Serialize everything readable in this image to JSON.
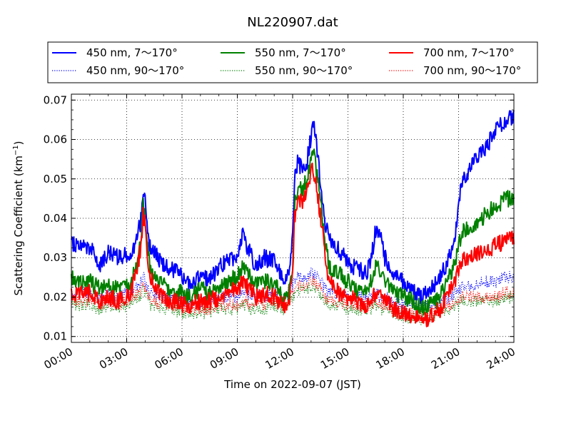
{
  "chart_data": {
    "type": "line",
    "title": "NL220907.dat",
    "xlabel": "Time on 2022-09-07 (JST)",
    "ylabel_main": "Scattering Coefficient (km",
    "ylabel_sup": "−1",
    "ylabel_end": ")",
    "xlim": [
      "00:00",
      "24:00"
    ],
    "ylim": [
      0.0085,
      0.0715
    ],
    "x_ticks": [
      "00:00",
      "03:00",
      "06:00",
      "09:00",
      "12:00",
      "15:00",
      "18:00",
      "21:00",
      "24:00"
    ],
    "y_ticks": [
      "0.01",
      "0.02",
      "0.03",
      "0.04",
      "0.05",
      "0.06",
      "0.07"
    ],
    "grid": true,
    "legend_placement": "top-outside",
    "x_hours": [
      0,
      0.5,
      1,
      1.5,
      2,
      2.5,
      3,
      3.3,
      3.6,
      3.8,
      3.9,
      4.0,
      4.1,
      4.25,
      4.5,
      5,
      5.5,
      6,
      6.5,
      7,
      7.5,
      8,
      8.5,
      9,
      9.3,
      9.5,
      9.7,
      10,
      10.5,
      11,
      11.5,
      11.8,
      12,
      12.1,
      12.3,
      12.5,
      12.8,
      13,
      13.1,
      13.3,
      13.5,
      13.8,
      14,
      14.5,
      15,
      15.5,
      16,
      16.3,
      16.5,
      16.8,
      17,
      17.5,
      18,
      18.5,
      19,
      19.5,
      20,
      20.5,
      20.8,
      21,
      21.2,
      21.5,
      22,
      22.5,
      23,
      23.5,
      24
    ],
    "series": [
      {
        "name": "450 nm, 7～170°",
        "color": "#0000ff",
        "style": "solid",
        "values": [
          0.034,
          0.033,
          0.033,
          0.028,
          0.031,
          0.03,
          0.031,
          0.032,
          0.036,
          0.04,
          0.048,
          0.044,
          0.038,
          0.033,
          0.031,
          0.028,
          0.027,
          0.025,
          0.023,
          0.026,
          0.024,
          0.028,
          0.029,
          0.031,
          0.036,
          0.033,
          0.031,
          0.028,
          0.03,
          0.029,
          0.024,
          0.026,
          0.035,
          0.05,
          0.055,
          0.052,
          0.055,
          0.061,
          0.065,
          0.058,
          0.05,
          0.038,
          0.034,
          0.032,
          0.029,
          0.027,
          0.026,
          0.031,
          0.037,
          0.035,
          0.03,
          0.026,
          0.024,
          0.022,
          0.02,
          0.022,
          0.025,
          0.03,
          0.035,
          0.045,
          0.05,
          0.052,
          0.055,
          0.058,
          0.062,
          0.065,
          0.066
        ]
      },
      {
        "name": "550 nm, 7～170°",
        "color": "#008000",
        "style": "solid",
        "values": [
          0.025,
          0.024,
          0.024,
          0.022,
          0.023,
          0.022,
          0.023,
          0.025,
          0.03,
          0.036,
          0.043,
          0.04,
          0.034,
          0.028,
          0.026,
          0.023,
          0.022,
          0.021,
          0.02,
          0.022,
          0.021,
          0.023,
          0.024,
          0.025,
          0.028,
          0.027,
          0.025,
          0.023,
          0.024,
          0.023,
          0.02,
          0.021,
          0.028,
          0.043,
          0.048,
          0.047,
          0.05,
          0.055,
          0.057,
          0.052,
          0.045,
          0.032,
          0.028,
          0.026,
          0.024,
          0.022,
          0.022,
          0.025,
          0.028,
          0.027,
          0.024,
          0.021,
          0.02,
          0.019,
          0.017,
          0.018,
          0.02,
          0.025,
          0.028,
          0.033,
          0.036,
          0.038,
          0.039,
          0.041,
          0.043,
          0.045,
          0.045
        ]
      },
      {
        "name": "700 nm, 7～170°",
        "color": "#ff0000",
        "style": "solid",
        "values": [
          0.021,
          0.021,
          0.021,
          0.019,
          0.02,
          0.019,
          0.02,
          0.022,
          0.028,
          0.034,
          0.041,
          0.038,
          0.032,
          0.026,
          0.023,
          0.02,
          0.019,
          0.018,
          0.018,
          0.019,
          0.019,
          0.02,
          0.021,
          0.022,
          0.024,
          0.023,
          0.022,
          0.02,
          0.021,
          0.02,
          0.018,
          0.019,
          0.026,
          0.04,
          0.045,
          0.044,
          0.047,
          0.052,
          0.053,
          0.048,
          0.041,
          0.029,
          0.024,
          0.021,
          0.02,
          0.019,
          0.018,
          0.02,
          0.021,
          0.021,
          0.019,
          0.017,
          0.016,
          0.015,
          0.014,
          0.015,
          0.017,
          0.021,
          0.024,
          0.027,
          0.029,
          0.03,
          0.031,
          0.032,
          0.033,
          0.034,
          0.035
        ]
      },
      {
        "name": "450 nm, 90～170°",
        "color": "#0000ff",
        "style": "dotted",
        "values": [
          0.021,
          0.021,
          0.021,
          0.02,
          0.021,
          0.02,
          0.021,
          0.022,
          0.023,
          0.024,
          0.025,
          0.024,
          0.023,
          0.021,
          0.021,
          0.02,
          0.02,
          0.019,
          0.019,
          0.019,
          0.019,
          0.02,
          0.02,
          0.02,
          0.021,
          0.021,
          0.02,
          0.02,
          0.02,
          0.021,
          0.02,
          0.021,
          0.023,
          0.024,
          0.025,
          0.025,
          0.025,
          0.026,
          0.026,
          0.025,
          0.024,
          0.022,
          0.021,
          0.021,
          0.02,
          0.02,
          0.02,
          0.02,
          0.021,
          0.02,
          0.02,
          0.019,
          0.018,
          0.018,
          0.017,
          0.018,
          0.019,
          0.02,
          0.021,
          0.022,
          0.023,
          0.023,
          0.023,
          0.024,
          0.024,
          0.025,
          0.025
        ]
      },
      {
        "name": "550 nm, 90～170°",
        "color": "#008000",
        "style": "dotted",
        "values": [
          0.018,
          0.018,
          0.018,
          0.017,
          0.018,
          0.017,
          0.018,
          0.019,
          0.02,
          0.021,
          0.022,
          0.021,
          0.02,
          0.018,
          0.018,
          0.017,
          0.017,
          0.016,
          0.016,
          0.016,
          0.016,
          0.017,
          0.017,
          0.017,
          0.018,
          0.018,
          0.017,
          0.017,
          0.017,
          0.018,
          0.017,
          0.018,
          0.02,
          0.021,
          0.022,
          0.022,
          0.022,
          0.023,
          0.023,
          0.022,
          0.021,
          0.019,
          0.018,
          0.018,
          0.017,
          0.017,
          0.017,
          0.017,
          0.018,
          0.017,
          0.017,
          0.016,
          0.015,
          0.015,
          0.014,
          0.015,
          0.016,
          0.017,
          0.018,
          0.018,
          0.019,
          0.019,
          0.019,
          0.019,
          0.019,
          0.02,
          0.02
        ]
      },
      {
        "name": "700 nm, 90～170°",
        "color": "#ff0000",
        "style": "dotted",
        "values": [
          0.019,
          0.019,
          0.019,
          0.018,
          0.019,
          0.018,
          0.019,
          0.02,
          0.021,
          0.022,
          0.023,
          0.022,
          0.021,
          0.019,
          0.019,
          0.018,
          0.018,
          0.017,
          0.017,
          0.017,
          0.017,
          0.018,
          0.018,
          0.018,
          0.019,
          0.019,
          0.018,
          0.018,
          0.018,
          0.019,
          0.018,
          0.019,
          0.021,
          0.022,
          0.023,
          0.023,
          0.023,
          0.024,
          0.024,
          0.023,
          0.022,
          0.02,
          0.019,
          0.019,
          0.018,
          0.018,
          0.018,
          0.018,
          0.019,
          0.018,
          0.018,
          0.017,
          0.016,
          0.016,
          0.015,
          0.016,
          0.017,
          0.018,
          0.019,
          0.019,
          0.02,
          0.02,
          0.02,
          0.02,
          0.02,
          0.021,
          0.021
        ]
      }
    ]
  }
}
